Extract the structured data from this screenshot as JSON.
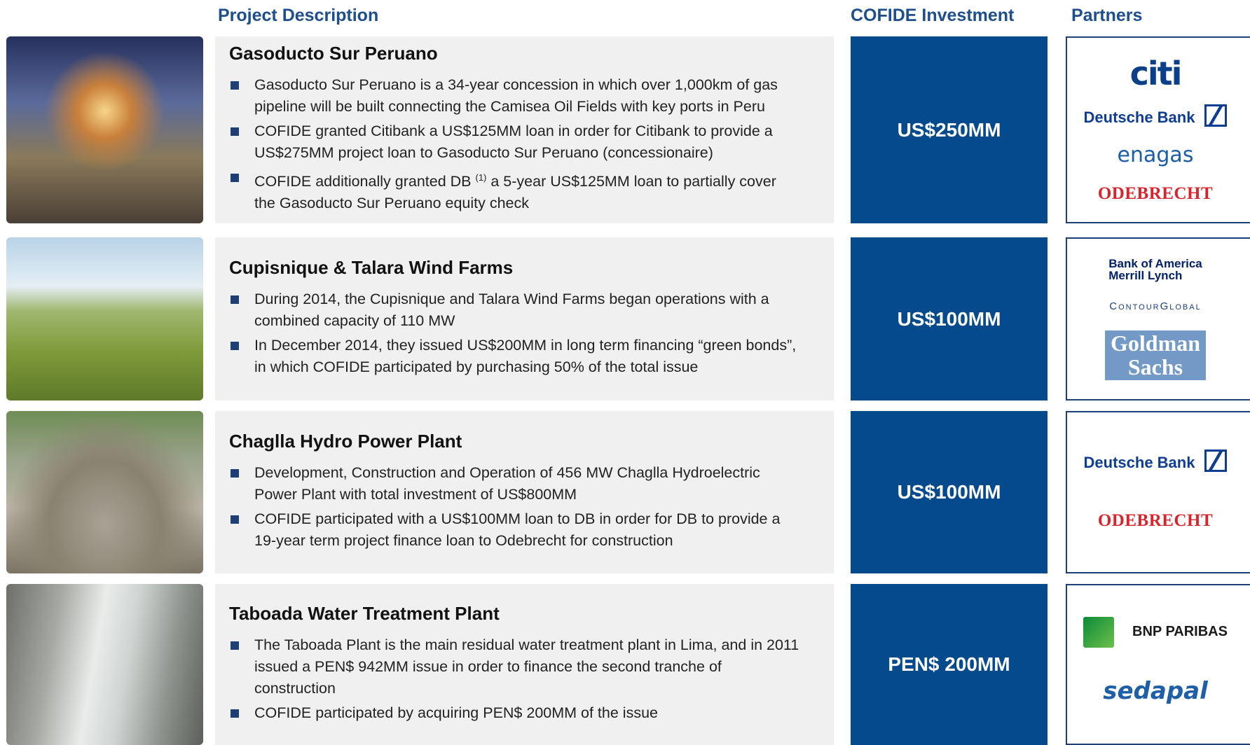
{
  "headers": {
    "description": "Project Description",
    "investment": "COFIDE Investment",
    "partners": "Partners"
  },
  "rows": [
    {
      "title": "Gasoducto Sur Peruano",
      "bullets": [
        "Gasoducto Sur Peruano is a 34-year concession in which over 1,000km of gas pipeline will be built connecting the Camisea Oil Fields with key ports in Peru",
        "COFIDE granted Citibank a US$125MM loan in order for Citibank to provide a US$275MM project loan to Gasoducto Sur Peruano (concessionaire)",
        {
          "text": "COFIDE additionally granted DB",
          "superscript": "(1)",
          "text_after": "a 5-year US$125MM loan to partially cover the Gasoducto Sur Peruano equity check"
        }
      ],
      "investment": "US$250MM",
      "partners": [
        {
          "lines": [
            "citi"
          ],
          "color": "#0b3f8a"
        },
        {
          "lines": [
            "Deutsche Bank"
          ],
          "color": "#0f3d91"
        },
        {
          "lines": [
            "enagas"
          ],
          "color": "#1a5ea8"
        },
        {
          "lines": [
            "ODEBRECHT"
          ],
          "color": "#d9242b"
        }
      ]
    },
    {
      "title": "Cupisnique & Talara Wind Farms",
      "bullets": [
        "During 2014, the Cupisnique and Talara Wind Farms began operations with a combined capacity of 110 MW",
        "In December 2014, they issued US$200MM in long term financing “green bonds”, in which COFIDE participated by purchasing 50% of the total issue"
      ],
      "investment": "US$100MM",
      "partners": [
        {
          "lines": [
            "Bank of America",
            "Merrill Lynch"
          ],
          "color": "#012169"
        },
        {
          "lines": [
            "ContourGlobal"
          ],
          "color": "#1d3f7a"
        },
        {
          "lines": [
            "Goldman",
            "Sachs"
          ],
          "color": "#ffffff",
          "background": "#7399c6"
        }
      ]
    },
    {
      "title": "Chaglla Hydro Power Plant",
      "bullets": [
        "Development, Construction and Operation of 456 MW Chaglla Hydroelectric Power Plant with total investment of US$800MM",
        "COFIDE participated with a US$100MM loan to DB in order for DB to provide a 19-year term project finance loan to Odebrecht for construction"
      ],
      "investment": "US$100MM",
      "partners": [
        {
          "lines": [
            "Deutsche Bank"
          ],
          "color": "#0f3d91"
        },
        {
          "lines": [
            "ODEBRECHT"
          ],
          "color": "#d9242b"
        }
      ]
    },
    {
      "title": "Taboada Water Treatment Plant",
      "bullets": [
        "The Taboada Plant is the main residual water treatment plant in Lima, and in 2011 issued a PEN$ 942MM issue in order to finance the second tranche of construction",
        "COFIDE participated by acquiring PEN$ 200MM of the issue"
      ],
      "investment": "PEN$ 200MM",
      "partners": [
        {
          "lines": [
            "BNP PARIBAS"
          ],
          "color": "#1a1a1a"
        },
        {
          "lines": [
            "sedapal"
          ],
          "color": "#1f5fa8"
        }
      ]
    }
  ]
}
